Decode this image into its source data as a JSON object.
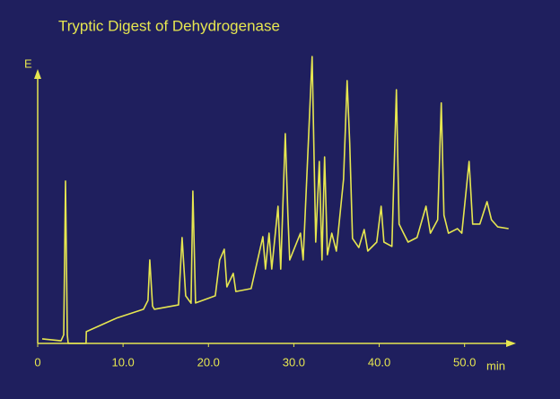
{
  "chart_data": {
    "type": "line",
    "title": "Tryptic Digest of Dehydrogenase",
    "y_label": "E",
    "x_label": "min",
    "color": "#e6e650",
    "xlim": [
      0,
      55.5
    ],
    "ylim": [
      0,
      100
    ],
    "xticks": [
      0,
      {
        "value": 10,
        "label": "10.0"
      },
      {
        "value": 20,
        "label": "20.0"
      },
      {
        "value": 30,
        "label": "30.0"
      },
      {
        "value": 40,
        "label": "40.0"
      },
      {
        "value": 50,
        "label": "50.0"
      }
    ],
    "x": [
      0.53,
      2.73,
      3.05,
      3.26,
      3.47,
      3.57,
      5.67,
      5.7,
      9.24,
      12.39,
      12.92,
      13.13,
      13.45,
      13.66,
      16.49,
      16.91,
      17.33,
      17.96,
      18.17,
      18.49,
      20.8,
      21.32,
      21.85,
      22.16,
      22.9,
      23.21,
      25,
      26.37,
      26.68,
      27.1,
      27.41,
      28.15,
      28.47,
      29.0,
      29.31,
      29.52,
      30.78,
      31.09,
      32.14,
      32.56,
      32.98,
      33.3,
      33.61,
      33.93,
      34.45,
      34.98,
      35.82,
      36.24,
      36.55,
      36.87,
      37.61,
      38.24,
      38.66,
      39.71,
      40.23,
      40.55,
      41.49,
      42.01,
      42.33,
      42.86,
      43.38,
      44.43,
      45.48,
      46.0,
      46.85,
      47.27,
      47.58,
      48.11,
      49.16,
      49.68,
      50.53,
      50.95,
      51.79,
      52.63,
      53.15,
      53.89,
      55.15
    ],
    "values": [
      1.6,
      0.9,
      3,
      56.6,
      3,
      0,
      0,
      4.1,
      8.8,
      11.9,
      15,
      29.1,
      13,
      11.9,
      13.4,
      36.9,
      16.6,
      14,
      53.1,
      14.1,
      16.6,
      29.1,
      32.8,
      19.7,
      24.4,
      18.1,
      19.1,
      37.2,
      25.9,
      38.4,
      25.9,
      47.8,
      25.9,
      73.1,
      44.7,
      29.1,
      38.4,
      29.1,
      100,
      35.3,
      63.4,
      29.1,
      65,
      30.9,
      38.4,
      32.2,
      57.2,
      91.6,
      69.7,
      36.6,
      33.4,
      39.7,
      32.2,
      35.3,
      47.8,
      35.3,
      33.8,
      88.4,
      41.6,
      38.4,
      35.3,
      36.9,
      47.8,
      38.4,
      43.1,
      83.8,
      44.7,
      38.4,
      40,
      38.4,
      63.4,
      41.6,
      41.6,
      49.4,
      43.1,
      40.6,
      40
    ]
  }
}
